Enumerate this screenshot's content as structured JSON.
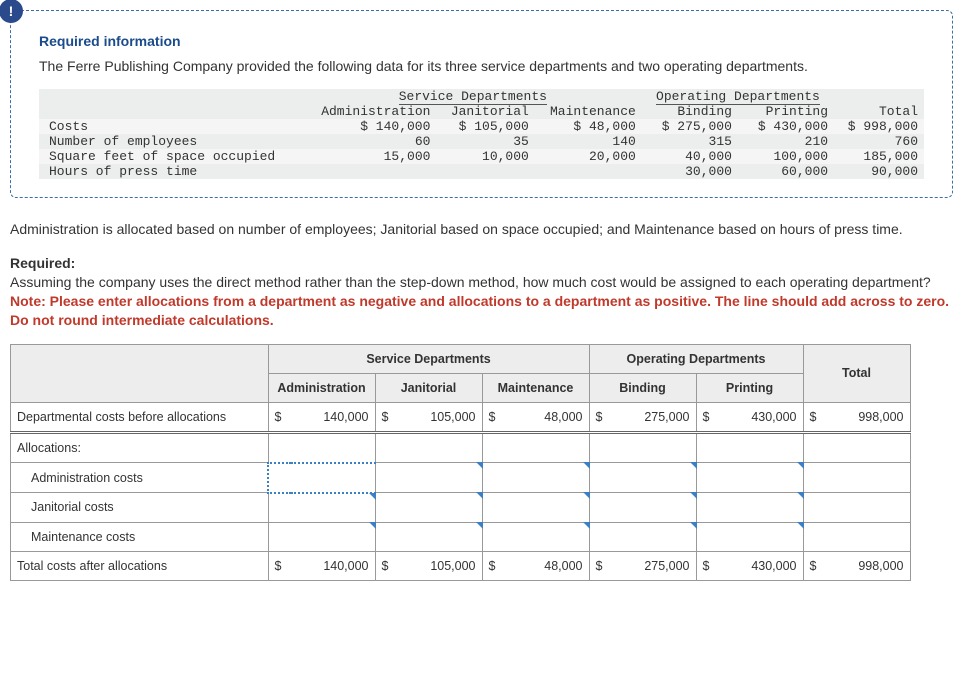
{
  "card": {
    "badge": "!",
    "title": "Required information",
    "intro": "The Ferre Publishing Company provided the following data for its three service departments and two operating departments."
  },
  "dataTable": {
    "group1": "Service Departments",
    "group2": "Operating Departments",
    "cols": [
      "Administration",
      "Janitorial",
      "Maintenance",
      "Binding",
      "Printing",
      "Total"
    ],
    "rows": [
      {
        "label": "Costs",
        "vals": [
          "$ 140,000",
          "$ 105,000",
          "$ 48,000",
          "$ 275,000",
          "$ 430,000",
          "$ 998,000"
        ]
      },
      {
        "label": "Number of employees",
        "vals": [
          "60",
          "35",
          "140",
          "315",
          "210",
          "760"
        ]
      },
      {
        "label": "Square feet of space occupied",
        "vals": [
          "15,000",
          "10,000",
          "20,000",
          "40,000",
          "100,000",
          "185,000"
        ]
      },
      {
        "label": "Hours of press time",
        "vals": [
          "",
          "",
          "",
          "30,000",
          "60,000",
          "90,000"
        ]
      }
    ]
  },
  "body": {
    "p1": "Administration is allocated based on number of employees; Janitorial based on space occupied; and Maintenance based on hours of press time.",
    "reqLabel": "Required:",
    "p2": "Assuming the company uses the direct method rather than the step-down method, how much cost would be assigned to each operating department?",
    "note": "Note: Please enter allocations from a department as negative and allocations to a department as positive. The line should add across to zero. Do not round intermediate calculations."
  },
  "answer": {
    "group1": "Service Departments",
    "group2": "Operating Departments",
    "totalLabel": "Total",
    "subcols": [
      "Administration",
      "Janitorial",
      "Maintenance",
      "Binding",
      "Printing"
    ],
    "rows": {
      "r1": {
        "label": "Departmental costs before allocations",
        "cur": "$",
        "vals": [
          "140,000",
          "105,000",
          "48,000",
          "275,000",
          "430,000",
          "998,000"
        ]
      },
      "r2": {
        "label": "Allocations:"
      },
      "r3": {
        "label": "Administration costs"
      },
      "r4": {
        "label": "Janitorial costs"
      },
      "r5": {
        "label": "Maintenance costs"
      },
      "r6": {
        "label": "Total costs after allocations",
        "cur": "$",
        "vals": [
          "140,000",
          "105,000",
          "48,000",
          "275,000",
          "430,000",
          "998,000"
        ]
      }
    }
  },
  "style": {
    "accent": "#1a4b8c",
    "border": "#3b6ea5",
    "noteColor": "#c0392b",
    "bgAlt": "#eceded"
  }
}
